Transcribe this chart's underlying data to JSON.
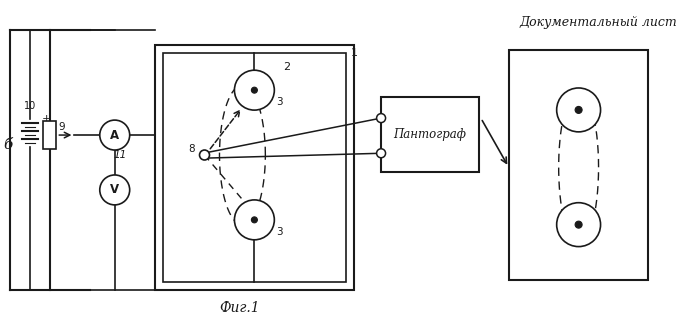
{
  "title": "Фиг.1",
  "doc_label": "Документальный лист",
  "pantograph_label": "Пантограф",
  "bg_color": "#ffffff",
  "line_color": "#1a1a1a",
  "fig_size": [
    6.98,
    3.2
  ],
  "dpi": 100
}
